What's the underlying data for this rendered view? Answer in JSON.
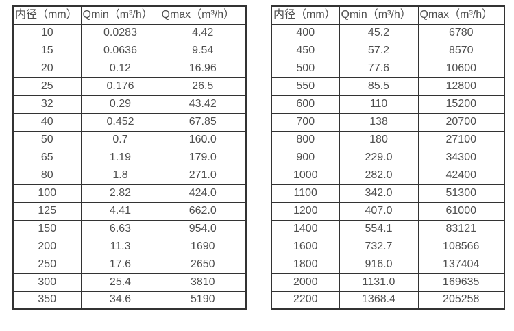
{
  "colors": {
    "background": "#ffffff",
    "border": "#333333",
    "text": "#4f4f4f"
  },
  "tables": [
    {
      "name": "flow-table-small-diameters",
      "headers": [
        "内径（mm）",
        "Qmin（m³/h）",
        "Qmax（m³/h）"
      ],
      "rows": [
        [
          "10",
          "0.0283",
          "4.42"
        ],
        [
          "15",
          "0.0636",
          "9.54"
        ],
        [
          "20",
          "0.12",
          "16.96"
        ],
        [
          "25",
          "0.176",
          "26.5"
        ],
        [
          "32",
          "0.29",
          "43.42"
        ],
        [
          "40",
          "0.452",
          "67.85"
        ],
        [
          "50",
          "0.7",
          "160.0"
        ],
        [
          "65",
          "1.19",
          "179.0"
        ],
        [
          "80",
          "1.8",
          "271.0"
        ],
        [
          "100",
          "2.82",
          "424.0"
        ],
        [
          "125",
          "4.41",
          "662.0"
        ],
        [
          "150",
          "6.63",
          "954.0"
        ],
        [
          "200",
          "11.3",
          "1690"
        ],
        [
          "250",
          "17.6",
          "2650"
        ],
        [
          "300",
          "25.4",
          "3810"
        ],
        [
          "350",
          "34.6",
          "5190"
        ]
      ]
    },
    {
      "name": "flow-table-large-diameters",
      "headers": [
        "内径（mm）",
        "Qmin（m³/h）",
        "Qmax（m³/h）"
      ],
      "rows": [
        [
          "400",
          "45.2",
          "6780"
        ],
        [
          "450",
          "57.2",
          "8570"
        ],
        [
          "500",
          "77.6",
          "10600"
        ],
        [
          "550",
          "85.5",
          "12800"
        ],
        [
          "600",
          "110",
          "15200"
        ],
        [
          "700",
          "138",
          "20700"
        ],
        [
          "800",
          "180",
          "27100"
        ],
        [
          "900",
          "229.0",
          "34300"
        ],
        [
          "1000",
          "282.0",
          "42400"
        ],
        [
          "1100",
          "342.0",
          "51300"
        ],
        [
          "1200",
          "407.0",
          "61000"
        ],
        [
          "1400",
          "554.1",
          "83121"
        ],
        [
          "1600",
          "732.7",
          "108566"
        ],
        [
          "1800",
          "916.0",
          "137404"
        ],
        [
          "2000",
          "1131.0",
          "169635"
        ],
        [
          "2200",
          "1368.4",
          "205258"
        ]
      ]
    }
  ]
}
